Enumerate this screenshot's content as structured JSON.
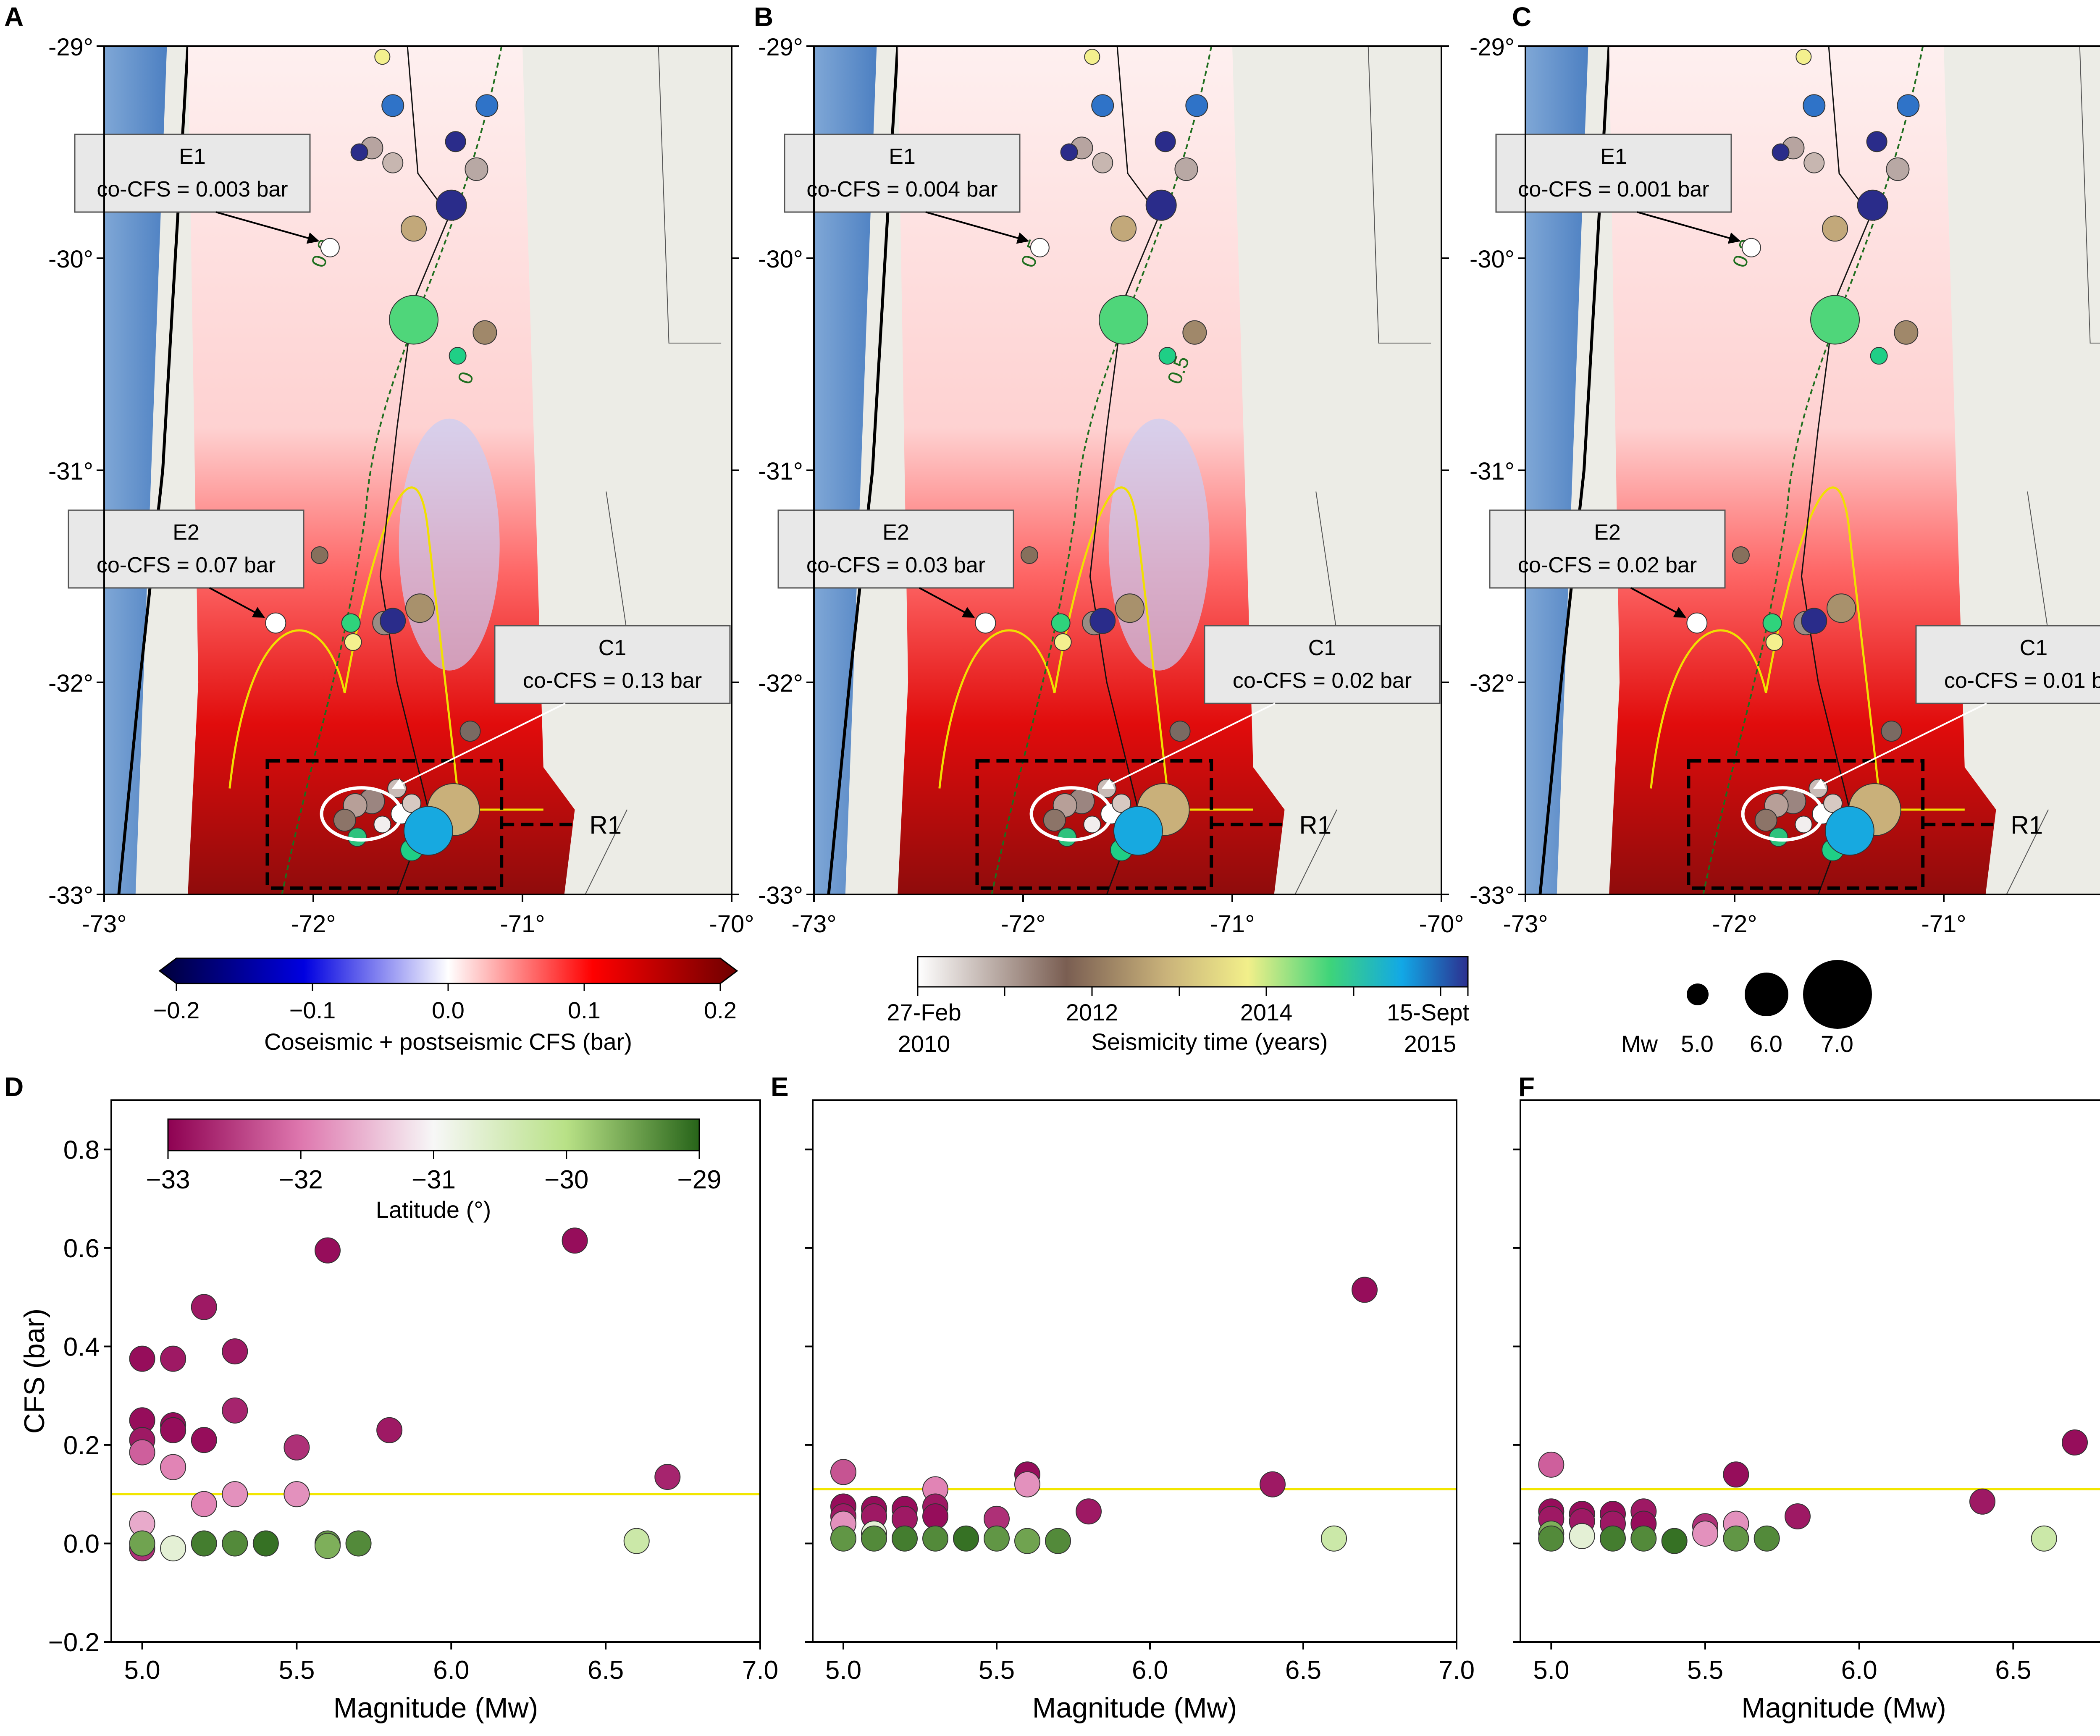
{
  "panel_letters": [
    "A",
    "B",
    "C",
    "D",
    "E",
    "F"
  ],
  "maps": {
    "lat_ticks": [
      "-29°",
      "-30°",
      "-31°",
      "-32°",
      "-33°"
    ],
    "lon_ticks": [
      "-73°",
      "-72°",
      "-71°",
      "-70°"
    ],
    "region_label": "R1",
    "panels": [
      {
        "E1": "co-CFS = 0.003 bar",
        "E2": "co-CFS = 0.07 bar",
        "C1": "co-CFS = 0.13 bar",
        "contours": [
          "0.8",
          "0"
        ]
      },
      {
        "E1": "co-CFS = 0.004 bar",
        "E2": "co-CFS = 0.03 bar",
        "C1": "co-CFS = 0.02 bar",
        "contours": [
          "0.5",
          "0.5"
        ]
      },
      {
        "E1": "co-CFS = 0.001 bar",
        "E2": "co-CFS = 0.02 bar",
        "C1": "co-CFS = 0.01 bar",
        "contours": [
          "0.2"
        ]
      }
    ],
    "event_names": [
      "E1",
      "E2",
      "C1"
    ]
  },
  "legends": {
    "cfs_colorbar": {
      "ticks": [
        "−0.2",
        "−0.1",
        "0.0",
        "0.1",
        "0.2"
      ],
      "label": "Coseismic + postseismic CFS (bar)",
      "colors": [
        "#00003a",
        "#0000e0",
        "#ffffff",
        "#ff0000",
        "#6e0000"
      ]
    },
    "time_colorbar": {
      "start_top": "27-Feb",
      "start_bottom": "2010",
      "tick_2012": "2012",
      "tick_2014": "2014",
      "end_top": "15-Sept",
      "end_bottom": "2015",
      "label": "Seismicity time (years)",
      "colors": [
        "#ffffff",
        "#7a5e52",
        "#c9b27a",
        "#f2ef8a",
        "#3ed47a",
        "#12a8e6",
        "#2c2f8f"
      ]
    },
    "magnitude_legend": {
      "prefix": "Mw",
      "labels": [
        "5.0",
        "6.0",
        "7.0"
      ]
    },
    "latitude_colorbar": {
      "ticks": [
        "−33",
        "−32",
        "−31",
        "−30",
        "−29"
      ],
      "label": "Latitude (°)",
      "colors": [
        "#8e0152",
        "#de77ae",
        "#f7f7f7",
        "#b8e186",
        "#276419"
      ]
    }
  },
  "chart_data": [
    {
      "type": "scatter",
      "panel": "D",
      "xlabel": "Magnitude (Mw)",
      "ylabel": "CFS (bar)",
      "xlim": [
        4.9,
        7.0
      ],
      "ylim": [
        -0.2,
        0.9
      ],
      "xticks": [
        "5.0",
        "5.5",
        "6.0",
        "6.5",
        "7.0"
      ],
      "yticks": [
        "−0.2",
        "0.0",
        "0.2",
        "0.4",
        "0.6",
        "0.8"
      ],
      "reference_line": 0.1,
      "points": [
        {
          "x": 5.0,
          "y": 0.375,
          "lat": -32.9
        },
        {
          "x": 5.0,
          "y": 0.25,
          "lat": -32.9
        },
        {
          "x": 5.0,
          "y": 0.21,
          "lat": -32.8
        },
        {
          "x": 5.0,
          "y": 0.185,
          "lat": -32.2
        },
        {
          "x": 5.0,
          "y": 0.04,
          "lat": -31.6
        },
        {
          "x": 5.0,
          "y": -0.01,
          "lat": -32.6
        },
        {
          "x": 5.0,
          "y": 0.0,
          "lat": -29.5
        },
        {
          "x": 5.1,
          "y": 0.375,
          "lat": -32.8
        },
        {
          "x": 5.1,
          "y": 0.24,
          "lat": -32.9
        },
        {
          "x": 5.1,
          "y": 0.23,
          "lat": -32.9
        },
        {
          "x": 5.1,
          "y": 0.155,
          "lat": -31.9
        },
        {
          "x": 5.1,
          "y": -0.01,
          "lat": -30.7
        },
        {
          "x": 5.2,
          "y": 0.48,
          "lat": -32.8
        },
        {
          "x": 5.2,
          "y": 0.21,
          "lat": -32.9
        },
        {
          "x": 5.2,
          "y": 0.08,
          "lat": -31.9
        },
        {
          "x": 5.2,
          "y": 0.0,
          "lat": -29.2
        },
        {
          "x": 5.3,
          "y": 0.39,
          "lat": -32.8
        },
        {
          "x": 5.3,
          "y": 0.27,
          "lat": -32.7
        },
        {
          "x": 5.3,
          "y": 0.1,
          "lat": -31.8
        },
        {
          "x": 5.3,
          "y": 0.0,
          "lat": -29.3
        },
        {
          "x": 5.4,
          "y": 0.0,
          "lat": -29.1
        },
        {
          "x": 5.5,
          "y": 0.195,
          "lat": -32.6
        },
        {
          "x": 5.5,
          "y": 0.1,
          "lat": -31.8
        },
        {
          "x": 5.6,
          "y": 0.595,
          "lat": -32.9
        },
        {
          "x": 5.6,
          "y": 0.0,
          "lat": -29.4
        },
        {
          "x": 5.6,
          "y": -0.005,
          "lat": -29.6
        },
        {
          "x": 5.7,
          "y": 0.0,
          "lat": -29.3
        },
        {
          "x": 5.8,
          "y": 0.23,
          "lat": -32.8
        },
        {
          "x": 6.4,
          "y": 0.615,
          "lat": -32.9
        },
        {
          "x": 6.6,
          "y": 0.005,
          "lat": -30.3
        },
        {
          "x": 6.7,
          "y": 0.135,
          "lat": -32.7
        }
      ]
    },
    {
      "type": "scatter",
      "panel": "E",
      "xlabel": "Magnitude (Mw)",
      "ylabel": "",
      "xlim": [
        4.9,
        7.0
      ],
      "ylim": [
        -0.2,
        0.9
      ],
      "xticks": [
        "5.0",
        "5.5",
        "6.0",
        "6.5",
        "7.0"
      ],
      "reference_line": 0.11,
      "points": [
        {
          "x": 5.0,
          "y": 0.145,
          "lat": -32.3
        },
        {
          "x": 5.0,
          "y": 0.075,
          "lat": -32.9
        },
        {
          "x": 5.0,
          "y": 0.055,
          "lat": -32.8
        },
        {
          "x": 5.0,
          "y": 0.04,
          "lat": -31.8
        },
        {
          "x": 5.0,
          "y": 0.01,
          "lat": -29.4
        },
        {
          "x": 5.1,
          "y": 0.07,
          "lat": -32.9
        },
        {
          "x": 5.1,
          "y": 0.055,
          "lat": -32.8
        },
        {
          "x": 5.1,
          "y": 0.02,
          "lat": -30.7
        },
        {
          "x": 5.1,
          "y": 0.01,
          "lat": -29.3
        },
        {
          "x": 5.2,
          "y": 0.07,
          "lat": -32.9
        },
        {
          "x": 5.2,
          "y": 0.05,
          "lat": -32.8
        },
        {
          "x": 5.2,
          "y": 0.01,
          "lat": -29.2
        },
        {
          "x": 5.3,
          "y": 0.11,
          "lat": -31.9
        },
        {
          "x": 5.3,
          "y": 0.075,
          "lat": -32.8
        },
        {
          "x": 5.3,
          "y": 0.055,
          "lat": -32.9
        },
        {
          "x": 5.3,
          "y": 0.01,
          "lat": -29.3
        },
        {
          "x": 5.4,
          "y": 0.01,
          "lat": -29.1
        },
        {
          "x": 5.5,
          "y": 0.05,
          "lat": -32.6
        },
        {
          "x": 5.5,
          "y": 0.01,
          "lat": -29.4
        },
        {
          "x": 5.6,
          "y": 0.14,
          "lat": -32.9
        },
        {
          "x": 5.6,
          "y": 0.12,
          "lat": -31.8
        },
        {
          "x": 5.6,
          "y": 0.005,
          "lat": -29.5
        },
        {
          "x": 5.7,
          "y": 0.005,
          "lat": -29.3
        },
        {
          "x": 5.8,
          "y": 0.065,
          "lat": -32.8
        },
        {
          "x": 6.4,
          "y": 0.12,
          "lat": -32.8
        },
        {
          "x": 6.6,
          "y": 0.01,
          "lat": -30.3
        },
        {
          "x": 6.7,
          "y": 0.515,
          "lat": -32.9
        }
      ]
    },
    {
      "type": "scatter",
      "panel": "F",
      "xlabel": "Magnitude (Mw)",
      "ylabel": "",
      "xlim": [
        4.9,
        7.0
      ],
      "ylim": [
        -0.2,
        0.9
      ],
      "xticks": [
        "5.0",
        "5.5",
        "6.0",
        "6.5",
        "7.0"
      ],
      "reference_line": 0.11,
      "points": [
        {
          "x": 5.0,
          "y": 0.16,
          "lat": -32.2
        },
        {
          "x": 5.0,
          "y": 0.065,
          "lat": -32.9
        },
        {
          "x": 5.0,
          "y": 0.05,
          "lat": -32.8
        },
        {
          "x": 5.0,
          "y": 0.02,
          "lat": -29.6
        },
        {
          "x": 5.0,
          "y": 0.01,
          "lat": -29.3
        },
        {
          "x": 5.1,
          "y": 0.06,
          "lat": -32.9
        },
        {
          "x": 5.1,
          "y": 0.045,
          "lat": -32.8
        },
        {
          "x": 5.1,
          "y": 0.015,
          "lat": -30.7
        },
        {
          "x": 5.2,
          "y": 0.06,
          "lat": -32.9
        },
        {
          "x": 5.2,
          "y": 0.04,
          "lat": -32.8
        },
        {
          "x": 5.2,
          "y": 0.01,
          "lat": -29.2
        },
        {
          "x": 5.3,
          "y": 0.065,
          "lat": -32.8
        },
        {
          "x": 5.3,
          "y": 0.04,
          "lat": -32.9
        },
        {
          "x": 5.3,
          "y": 0.01,
          "lat": -29.3
        },
        {
          "x": 5.4,
          "y": 0.005,
          "lat": -29.1
        },
        {
          "x": 5.5,
          "y": 0.035,
          "lat": -32.6
        },
        {
          "x": 5.5,
          "y": 0.02,
          "lat": -31.8
        },
        {
          "x": 5.6,
          "y": 0.14,
          "lat": -32.9
        },
        {
          "x": 5.6,
          "y": 0.04,
          "lat": -31.8
        },
        {
          "x": 5.6,
          "y": 0.01,
          "lat": -29.4
        },
        {
          "x": 5.7,
          "y": 0.01,
          "lat": -29.3
        },
        {
          "x": 5.8,
          "y": 0.055,
          "lat": -32.8
        },
        {
          "x": 6.4,
          "y": 0.085,
          "lat": -32.8
        },
        {
          "x": 6.6,
          "y": 0.01,
          "lat": -30.3
        },
        {
          "x": 6.7,
          "y": 0.205,
          "lat": -32.9
        }
      ]
    }
  ]
}
